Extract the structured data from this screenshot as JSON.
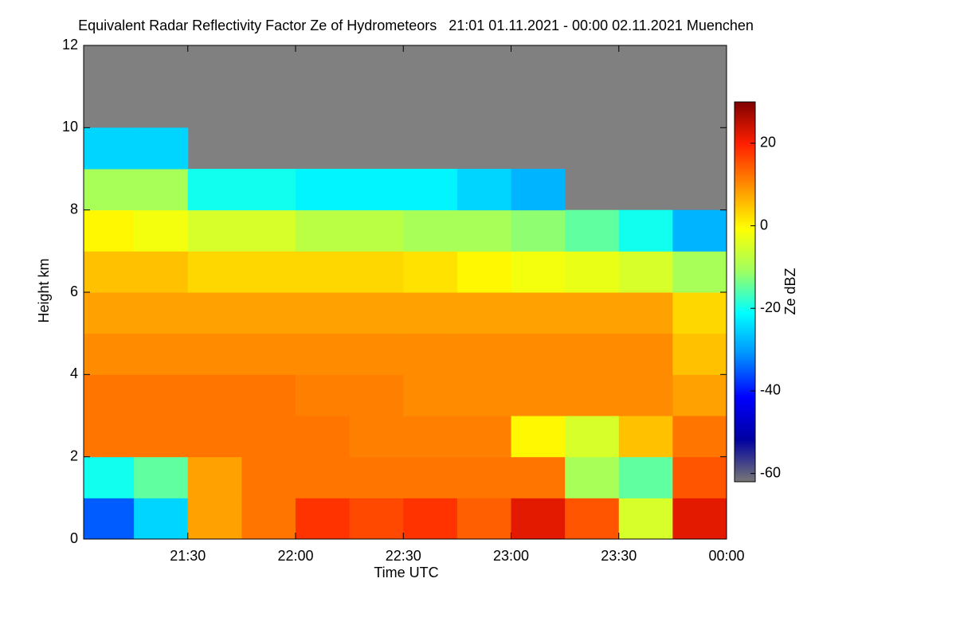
{
  "chart_data": {
    "type": "heatmap",
    "title": "Equivalent Radar Reflectivity Factor Ze of Hydrometeors   21:01 01.11.2021 - 00:00 02.11.2021 Muenchen",
    "x_label": "Time UTC",
    "y_label": "Height km",
    "colorbar_label": "Ze dBZ",
    "xlim": [
      1261,
      1440
    ],
    "xticks": [
      {
        "value": 1290,
        "label": "21:30"
      },
      {
        "value": 1320,
        "label": "22:00"
      },
      {
        "value": 1350,
        "label": "22:30"
      },
      {
        "value": 1380,
        "label": "23:00"
      },
      {
        "value": 1410,
        "label": "23:30"
      },
      {
        "value": 1440,
        "label": "00:00"
      }
    ],
    "ylim": [
      0,
      12
    ],
    "yticks": [
      0,
      2,
      4,
      6,
      8,
      10,
      12
    ],
    "clim": [
      -62,
      30
    ],
    "cticks": [
      -60,
      -40,
      -20,
      0,
      20
    ],
    "colormap": [
      "#777777",
      "#0000a0",
      "#0000ff",
      "#0090ff",
      "#00ffff",
      "#a0ff60",
      "#ffff00",
      "#ff9000",
      "#ff2000",
      "#800000"
    ],
    "missing_color": "#808080",
    "xbins": [
      1261,
      1275,
      1290,
      1305,
      1320,
      1335,
      1350,
      1365,
      1380,
      1395,
      1410,
      1425,
      1440
    ],
    "ybins": [
      0,
      1,
      2,
      3,
      4,
      5,
      6,
      7,
      8,
      9,
      10,
      11,
      12
    ],
    "z": [
      [
        -35,
        -25,
        8,
        12,
        18,
        16,
        18,
        14,
        22,
        15,
        -5,
        22
      ],
      [
        -20,
        -15,
        8,
        12,
        12,
        12,
        12,
        12,
        12,
        -10,
        -15,
        15
      ],
      [
        12,
        12,
        12,
        12,
        12,
        11,
        11,
        11,
        0,
        -5,
        5,
        12
      ],
      [
        12,
        12,
        12,
        12,
        11,
        11,
        10,
        10,
        10,
        10,
        10,
        8
      ],
      [
        10,
        10,
        10,
        10,
        10,
        10,
        10,
        10,
        10,
        10,
        10,
        5
      ],
      [
        8,
        8,
        8,
        8,
        8,
        8,
        8,
        8,
        8,
        8,
        8,
        3
      ],
      [
        5,
        5,
        3,
        3,
        3,
        3,
        2,
        0,
        -2,
        -3,
        -5,
        -10
      ],
      [
        0,
        -2,
        -5,
        -5,
        -8,
        -8,
        -10,
        -10,
        -12,
        -15,
        -20,
        -28
      ],
      [
        -10,
        -10,
        -20,
        -20,
        -22,
        -22,
        -22,
        -25,
        -28,
        null,
        null,
        null
      ],
      [
        -25,
        -25,
        null,
        null,
        null,
        null,
        null,
        null,
        null,
        null,
        null,
        null
      ],
      [
        null,
        null,
        null,
        null,
        null,
        null,
        null,
        null,
        null,
        null,
        null,
        null
      ],
      [
        null,
        null,
        null,
        null,
        null,
        null,
        null,
        null,
        null,
        null,
        null,
        null
      ]
    ]
  }
}
